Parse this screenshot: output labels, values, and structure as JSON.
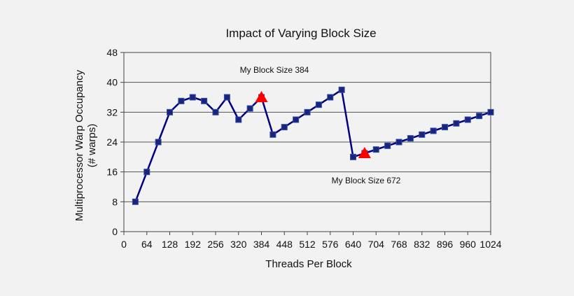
{
  "chart_data": {
    "type": "line",
    "title": "Impact of Varying Block Size",
    "xlabel": "Threads Per Block",
    "ylabel_lines": [
      "Multiprocessor Warp Occupancy",
      "(# warps)"
    ],
    "xlim": [
      0,
      1024
    ],
    "ylim": [
      0,
      48
    ],
    "xticks": [
      0,
      64,
      128,
      192,
      256,
      320,
      384,
      448,
      512,
      576,
      640,
      704,
      768,
      832,
      896,
      960,
      1024
    ],
    "yticks": [
      0,
      8,
      16,
      24,
      32,
      40,
      48
    ],
    "grid": "horizontal",
    "series": [
      {
        "color": "#000080",
        "marker_color": "#1a237e",
        "x": [
          32,
          64,
          96,
          128,
          160,
          192,
          224,
          256,
          288,
          320,
          352,
          384,
          416,
          448,
          480,
          512,
          544,
          576,
          608,
          640,
          672,
          704,
          736,
          768,
          800,
          832,
          864,
          896,
          928,
          960,
          992,
          1024
        ],
        "y": [
          8,
          16,
          24,
          32,
          35,
          36,
          35,
          32,
          36,
          30,
          33,
          36,
          26,
          28,
          30,
          32,
          34,
          36,
          38,
          20,
          21,
          22,
          23,
          24,
          25,
          26,
          27,
          28,
          29,
          30,
          31,
          32
        ]
      }
    ],
    "highlights": [
      {
        "x": 384,
        "y": 36,
        "color": "#ff0000",
        "label": "My Block Size 384"
      },
      {
        "x": 672,
        "y": 21,
        "color": "#ff0000",
        "label": "My Block Size 672"
      }
    ]
  }
}
